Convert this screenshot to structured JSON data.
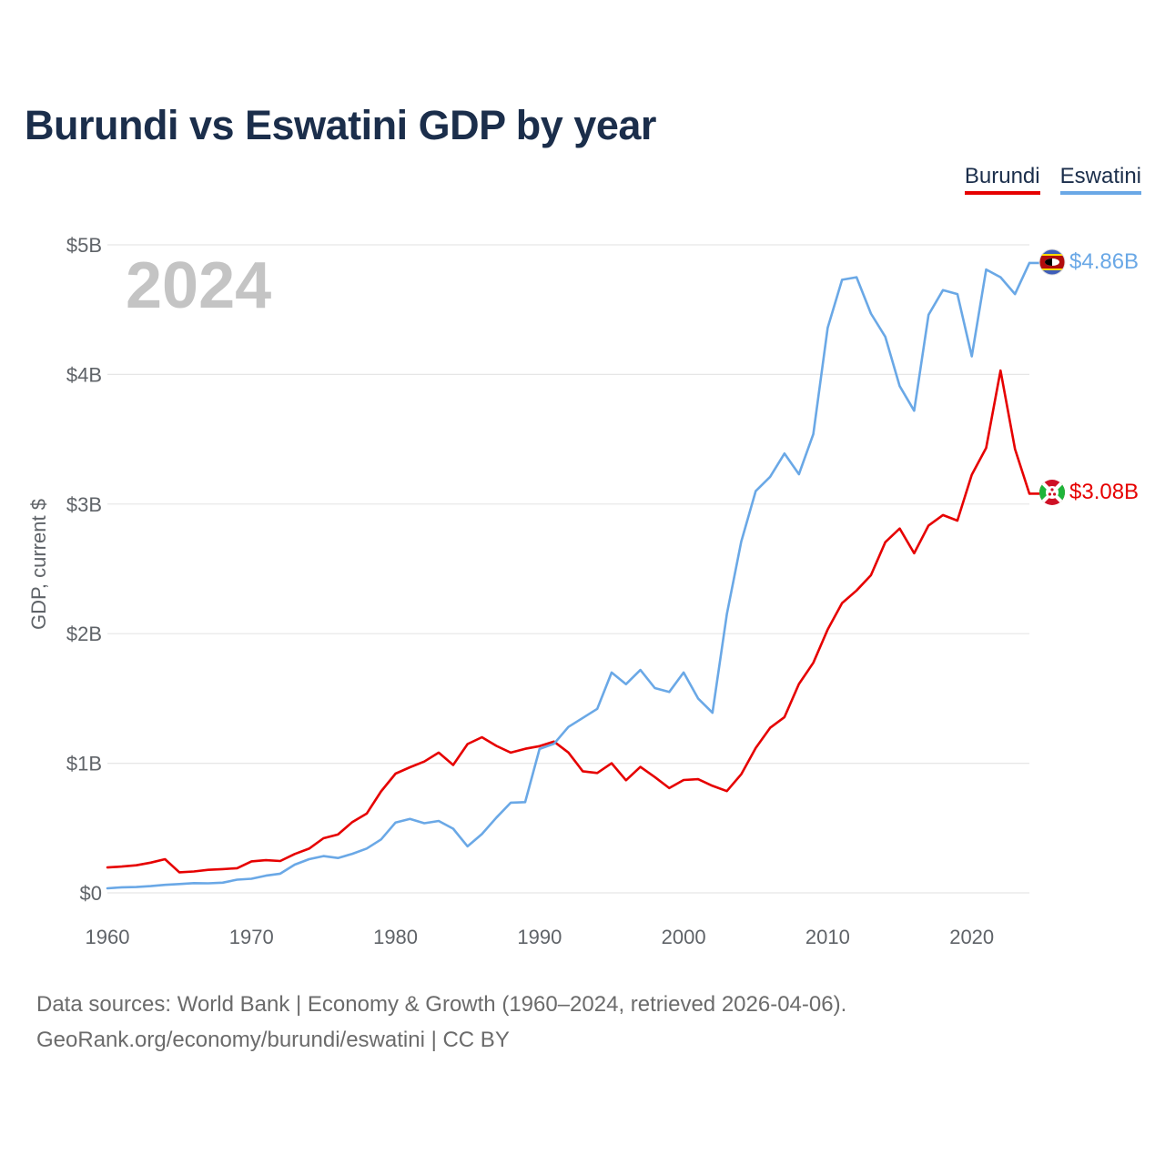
{
  "title": "Burundi vs Eswatini GDP by year",
  "legend": {
    "burundi": "Burundi",
    "eswatini": "Eswatini"
  },
  "footer": {
    "line1": "Data sources: World Bank | Economy & Growth (1960–2024, retrieved 2026-04-06).",
    "line2": "GeoRank.org/economy/burundi/eswatini | CC BY"
  },
  "colors": {
    "burundi": "#e60000",
    "eswatini": "#6aa8e6",
    "title": "#1b2e4b"
  },
  "chart_data": {
    "type": "line",
    "title": "Burundi vs Eswatini GDP by year",
    "xlabel": "",
    "ylabel": "GDP, current $",
    "xlim": [
      1960,
      2024
    ],
    "ylim": [
      0,
      5
    ],
    "y_unit": "billion US$",
    "xticks": [
      1960,
      1970,
      1980,
      1990,
      2000,
      2010,
      2020
    ],
    "yticks": [
      0,
      1,
      2,
      3,
      4,
      5
    ],
    "ytick_labels": [
      "$0",
      "$1B",
      "$2B",
      "$3B",
      "$4B",
      "$5B"
    ],
    "year_label": "2024",
    "grid": true,
    "legend_position": "top-right",
    "x": [
      1960,
      1961,
      1962,
      1963,
      1964,
      1965,
      1966,
      1967,
      1968,
      1969,
      1970,
      1971,
      1972,
      1973,
      1974,
      1975,
      1976,
      1977,
      1978,
      1979,
      1980,
      1981,
      1982,
      1983,
      1984,
      1985,
      1986,
      1987,
      1988,
      1989,
      1990,
      1991,
      1992,
      1993,
      1994,
      1995,
      1996,
      1997,
      1998,
      1999,
      2000,
      2001,
      2002,
      2003,
      2004,
      2005,
      2006,
      2007,
      2008,
      2009,
      2010,
      2011,
      2012,
      2013,
      2014,
      2015,
      2016,
      2017,
      2018,
      2019,
      2020,
      2021,
      2022,
      2023,
      2024
    ],
    "series": [
      {
        "name": "Burundi",
        "end_label": "$3.08B",
        "values": [
          0.196,
          0.203,
          0.213,
          0.233,
          0.26,
          0.159,
          0.165,
          0.178,
          0.183,
          0.19,
          0.243,
          0.252,
          0.246,
          0.3,
          0.341,
          0.421,
          0.45,
          0.546,
          0.612,
          0.783,
          0.92,
          0.969,
          1.013,
          1.082,
          0.987,
          1.148,
          1.201,
          1.134,
          1.082,
          1.112,
          1.132,
          1.167,
          1.083,
          0.938,
          0.925,
          1.0,
          0.869,
          0.972,
          0.893,
          0.808,
          0.871,
          0.877,
          0.826,
          0.785,
          0.915,
          1.117,
          1.273,
          1.356,
          1.612,
          1.775,
          2.032,
          2.236,
          2.333,
          2.451,
          2.706,
          2.811,
          2.62,
          2.834,
          2.915,
          2.872,
          3.226,
          3.433,
          4.03,
          3.424,
          3.08
        ]
      },
      {
        "name": "Eswatini",
        "end_label": "$4.86B",
        "values": [
          0.035,
          0.043,
          0.045,
          0.052,
          0.062,
          0.068,
          0.075,
          0.074,
          0.079,
          0.102,
          0.109,
          0.133,
          0.148,
          0.218,
          0.26,
          0.284,
          0.269,
          0.301,
          0.342,
          0.412,
          0.543,
          0.57,
          0.537,
          0.555,
          0.495,
          0.359,
          0.454,
          0.581,
          0.696,
          0.7,
          1.11,
          1.15,
          1.28,
          1.35,
          1.42,
          1.7,
          1.61,
          1.72,
          1.58,
          1.55,
          1.7,
          1.5,
          1.39,
          2.15,
          2.71,
          3.1,
          3.21,
          3.39,
          3.23,
          3.54,
          4.36,
          4.73,
          4.75,
          4.47,
          4.29,
          3.91,
          3.72,
          4.46,
          4.65,
          4.62,
          4.14,
          4.81,
          4.75,
          4.62,
          4.86
        ]
      }
    ]
  }
}
